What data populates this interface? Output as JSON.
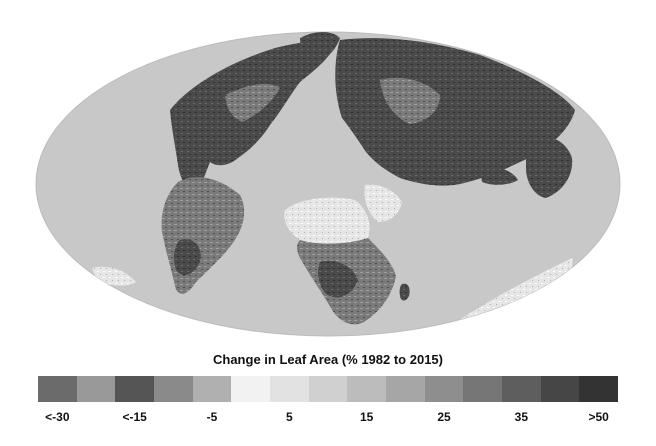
{
  "legend": {
    "title": "Change in Leaf Area (% 1982 to 2015)",
    "swatch_colors": [
      "#6b6b6b",
      "#999999",
      "#555555",
      "#8a8a8a",
      "#b0b0b0",
      "#f2f2f2",
      "#e2e2e2",
      "#d0d0d0",
      "#bcbcbc",
      "#a6a6a6",
      "#8e8e8e",
      "#767676",
      "#5e5e5e",
      "#464646",
      "#333333"
    ],
    "tick_labels": [
      "<-30",
      "<-15",
      "-5",
      "5",
      "15",
      "25",
      "35",
      ">50"
    ]
  },
  "map": {
    "ocean_color": "#c8c8c8",
    "land_color_dark": "#4a4a4a",
    "land_color_mid": "#7a7a7a",
    "land_color_light": "#e6e6e6"
  }
}
